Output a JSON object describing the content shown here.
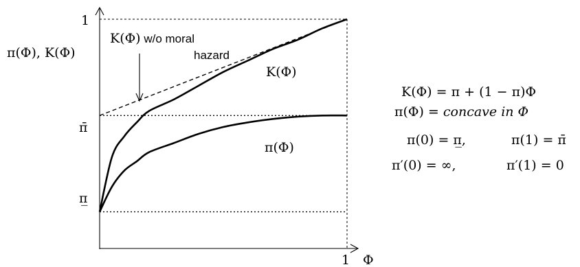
{
  "chart_data": {
    "type": "line",
    "ylabel": "π(Φ), K(Φ)",
    "xlabel": "Φ",
    "x_tick_labels": [
      "1"
    ],
    "y_tick_labels": [
      "1",
      "π̄",
      "π̲"
    ],
    "xlim": [
      0,
      1
    ],
    "ylim": [
      0,
      1
    ],
    "pi_low": 0.16,
    "pi_bar": 0.58,
    "series": [
      {
        "name": "K(Φ) w/o moral hazard",
        "style": "dashed",
        "x": [
          0,
          1
        ],
        "y": [
          0.58,
          1.0
        ]
      },
      {
        "name": "K(Φ)",
        "style": "solid",
        "x": [
          0,
          0.05,
          0.1,
          0.15,
          0.2,
          0.3,
          0.4,
          0.5,
          0.6,
          0.7,
          0.8,
          0.9,
          1.0
        ],
        "y": [
          0.16,
          0.4,
          0.49,
          0.55,
          0.6,
          0.65,
          0.71,
          0.77,
          0.82,
          0.87,
          0.91,
          0.96,
          1.0
        ]
      },
      {
        "name": "π(Φ)",
        "style": "solid",
        "x": [
          0,
          0.05,
          0.1,
          0.15,
          0.2,
          0.3,
          0.4,
          0.5,
          0.6,
          0.7,
          0.8,
          0.9,
          1.0
        ],
        "y": [
          0.16,
          0.27,
          0.34,
          0.38,
          0.42,
          0.46,
          0.5,
          0.53,
          0.55,
          0.565,
          0.575,
          0.58,
          0.58
        ]
      }
    ],
    "annotations": [
      {
        "text": "K(Φ) w/o moral",
        "target": "dashed line",
        "arrow": true
      },
      {
        "text": "hazard"
      },
      {
        "text": "K(Φ)"
      },
      {
        "text": "π(Φ)"
      }
    ],
    "grid": false,
    "legend": "none"
  },
  "labels": {
    "y_axis_label": "π(Φ), K(Φ)",
    "y_tick_one": "1",
    "y_tick_pibar": "π̄",
    "y_tick_pilow": "π̲",
    "x_tick_one": "1",
    "x_axis_label": "Φ",
    "annot_kwo_math": "K(Φ)",
    "annot_kwo_text1": " w/o moral",
    "annot_kwo_text2": "hazard",
    "curve_label_k": "K(Φ)",
    "curve_label_pi": "π(Φ)"
  },
  "equations": {
    "eq1": "K(Φ) = π + (1 − π)Φ",
    "eq2_lhs": "π(Φ) = ",
    "eq2_rhs": "concave in Φ",
    "eq3a": "π(0) = π̲,",
    "eq3b": "π(1) = π̄",
    "eq4a": "π′(0) = ∞,",
    "eq4b": "π′(1) = 0"
  }
}
